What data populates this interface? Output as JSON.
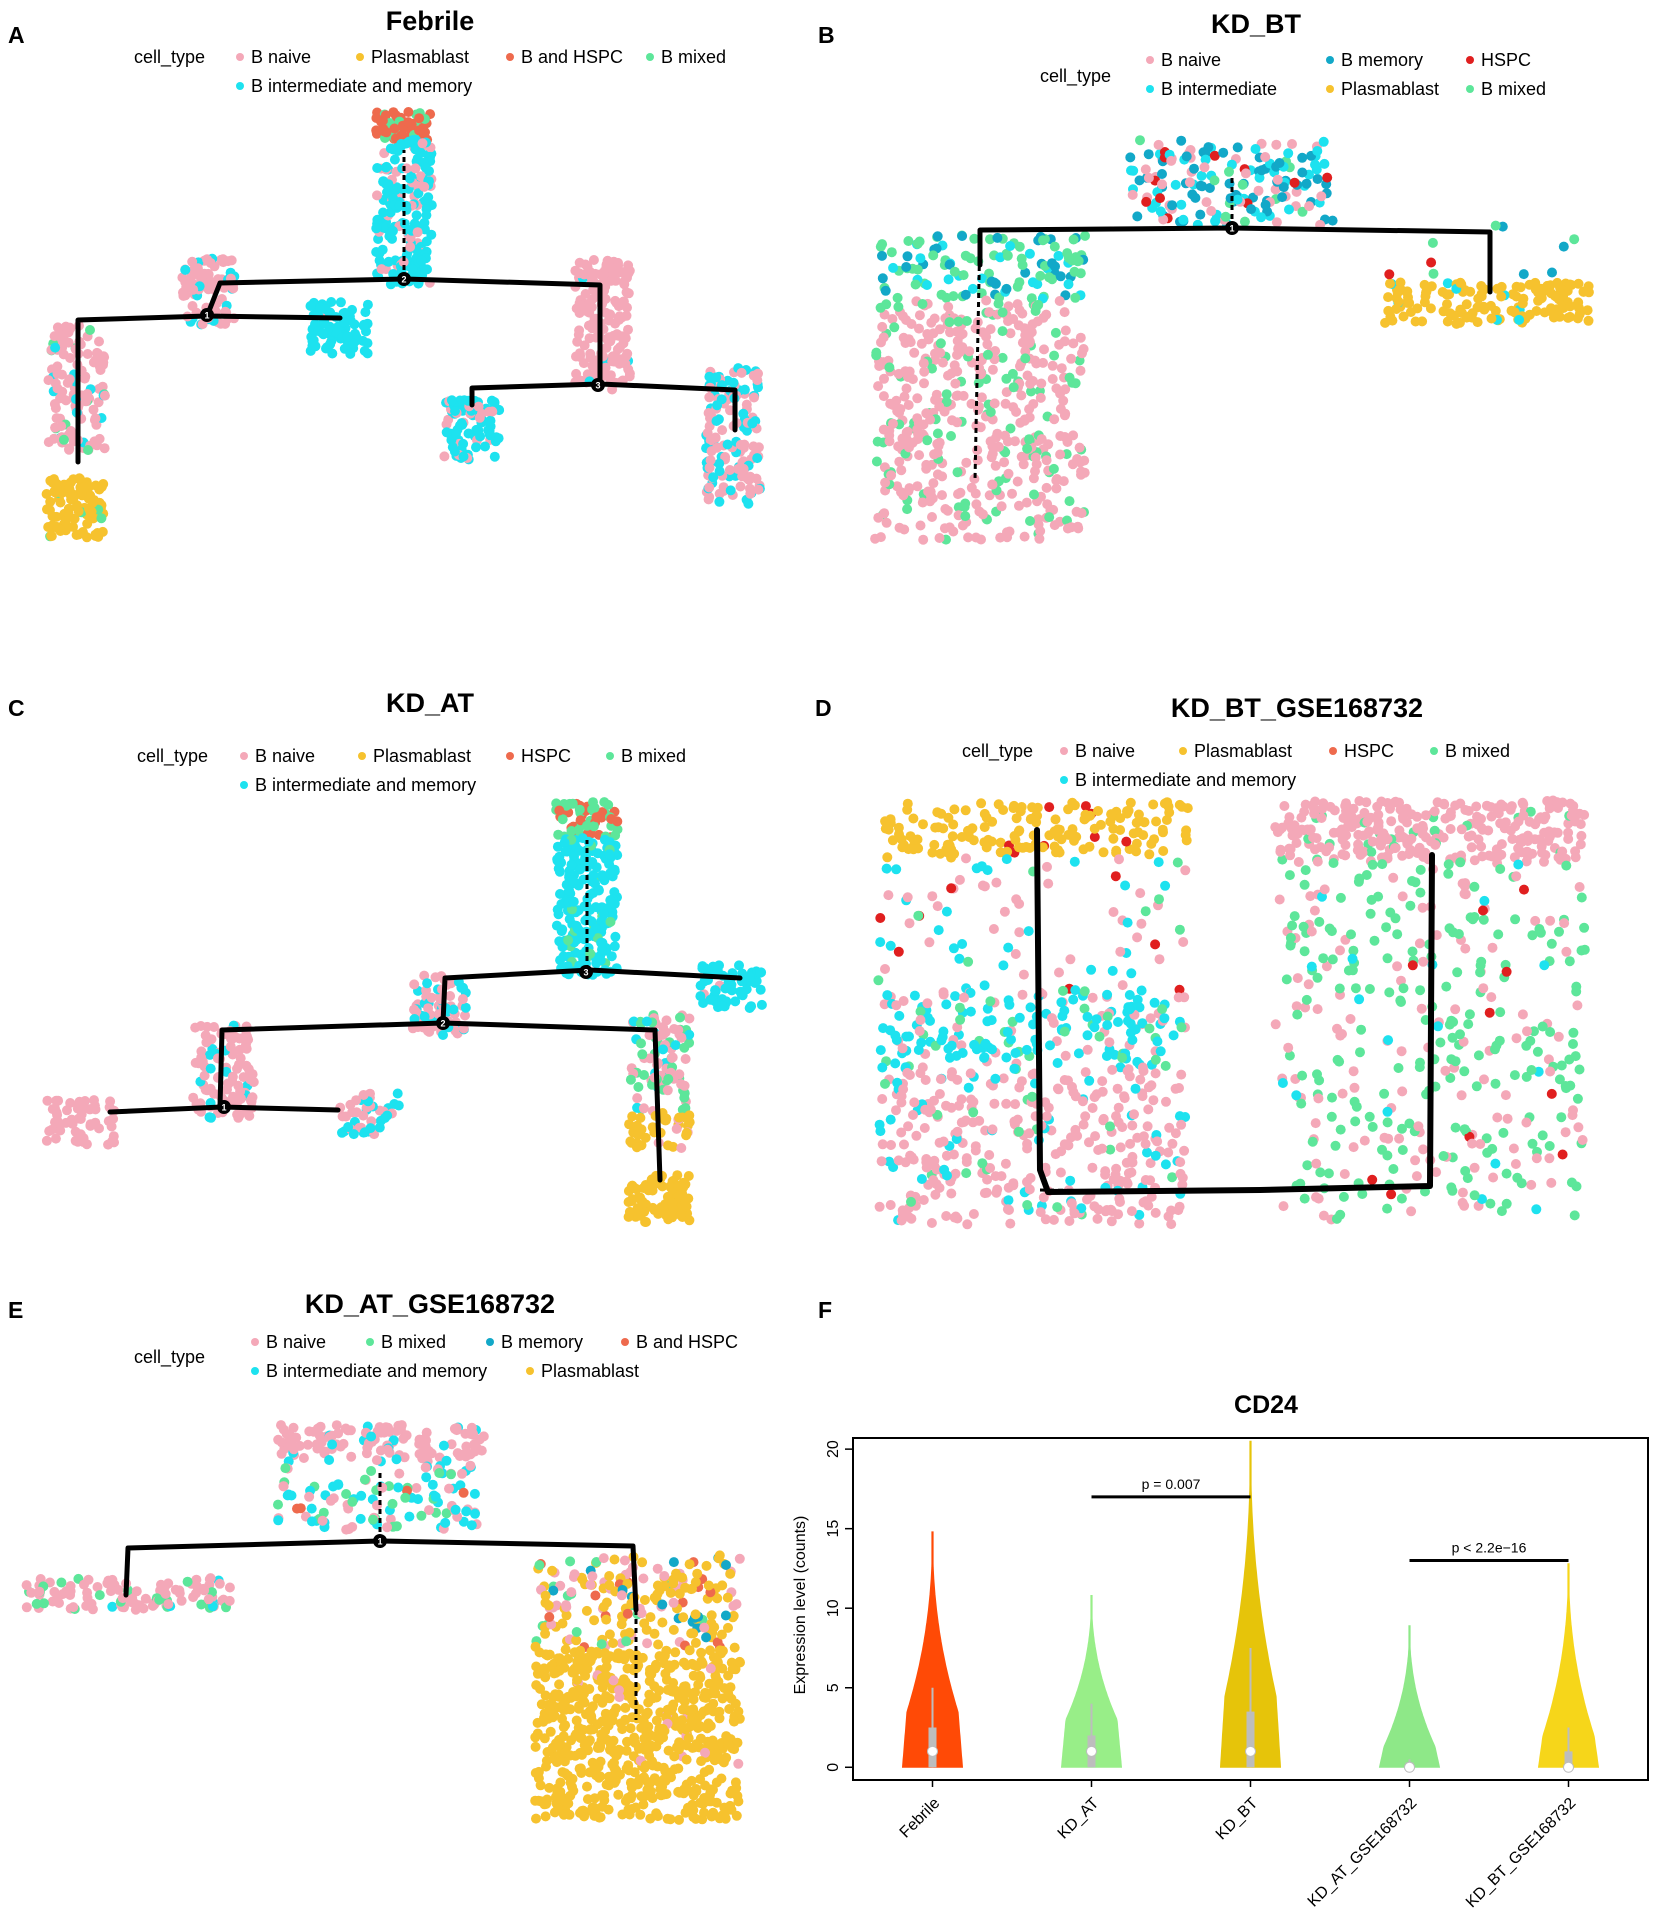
{
  "colors": {
    "b_naive": "#f4a8b8",
    "plasmablast": "#f6c22e",
    "hspc_red": "#e01f1f",
    "b_hspc_orange": "#ee6a4d",
    "b_mixed": "#5de69a",
    "b_inter": "#1de2ef",
    "b_memory": "#12a8c8",
    "violin_febrile": "#ff4a06",
    "violin_kdat": "#98ee88",
    "violin_kdbt": "#e6c40a",
    "violin_kdat_gse": "#8ee888",
    "violin_kdbt_gse": "#f6d61a",
    "branch": "#000000"
  },
  "panels": [
    {
      "letter": "A",
      "title": "Febrile",
      "legend_title": "cell_type",
      "legend": [
        {
          "label": "B naive",
          "color": "#f4a8b8"
        },
        {
          "label": "Plasmablast",
          "color": "#f6c22e"
        },
        {
          "label": "B and HSPC",
          "color": "#ee6a4d"
        },
        {
          "label": "B mixed",
          "color": "#5de69a"
        },
        {
          "label": "B intermediate and memory",
          "color": "#1de2ef"
        }
      ],
      "branch_nodes": [
        "1",
        "2",
        "3"
      ]
    },
    {
      "letter": "B",
      "title": "KD_BT",
      "legend_title": "cell_type",
      "legend": [
        {
          "label": "B naive",
          "color": "#f4a8b8"
        },
        {
          "label": "B memory",
          "color": "#12a8c8"
        },
        {
          "label": "HSPC",
          "color": "#e01f1f"
        },
        {
          "label": "B intermediate",
          "color": "#1de2ef"
        },
        {
          "label": "Plasmablast",
          "color": "#f6c22e"
        },
        {
          "label": "B mixed",
          "color": "#5de69a"
        }
      ],
      "branch_nodes": [
        "1"
      ]
    },
    {
      "letter": "C",
      "title": "KD_AT",
      "legend_title": "cell_type",
      "legend": [
        {
          "label": "B naive",
          "color": "#f4a8b8"
        },
        {
          "label": "Plasmablast",
          "color": "#f6c22e"
        },
        {
          "label": "HSPC",
          "color": "#ee6a4d"
        },
        {
          "label": "B mixed",
          "color": "#5de69a"
        },
        {
          "label": "B intermediate and memory",
          "color": "#1de2ef"
        }
      ],
      "branch_nodes": [
        "1",
        "2",
        "3"
      ]
    },
    {
      "letter": "D",
      "title": "KD_BT_GSE168732",
      "legend_title": "cell_type",
      "legend": [
        {
          "label": "B naive",
          "color": "#f4a8b8"
        },
        {
          "label": "Plasmablast",
          "color": "#f6c22e"
        },
        {
          "label": "HSPC",
          "color": "#ee6a4d"
        },
        {
          "label": "B mixed",
          "color": "#5de69a"
        },
        {
          "label": "B intermediate and memory",
          "color": "#1de2ef"
        }
      ],
      "branch_nodes": []
    },
    {
      "letter": "E",
      "title": "KD_AT_GSE168732",
      "legend_title": "cell_type",
      "legend": [
        {
          "label": "B naive",
          "color": "#f4a8b8"
        },
        {
          "label": "B mixed",
          "color": "#5de69a"
        },
        {
          "label": "B memory",
          "color": "#12a8c8"
        },
        {
          "label": "B and HSPC",
          "color": "#ee6a4d"
        },
        {
          "label": "B intermediate and memory",
          "color": "#1de2ef"
        },
        {
          "label": "Plasmablast",
          "color": "#f6c22e"
        }
      ],
      "branch_nodes": [
        "1"
      ]
    }
  ],
  "chart_data": [
    {
      "panel": "F",
      "type": "violin",
      "title": "CD24",
      "xlabel": "",
      "ylabel": "Expression level (counts)",
      "ylim": [
        -0.8,
        20.7
      ],
      "yticks": [
        0,
        5,
        10,
        15,
        20
      ],
      "categories": [
        "Febrile",
        "KD_AT",
        "KD_BT",
        "KD_AT_GSE168732",
        "KD_BT_GSE168732"
      ],
      "violins": [
        {
          "group": "Febrile",
          "max": 14.8,
          "median": 1.0,
          "q1": 0.0,
          "q3": 2.5,
          "whisker_top": 5.0,
          "color": "#ff4a06"
        },
        {
          "group": "KD_AT",
          "max": 10.8,
          "median": 1.0,
          "q1": 0.0,
          "q3": 2.0,
          "whisker_top": 4.0,
          "color": "#98ee88"
        },
        {
          "group": "KD_BT",
          "max": 20.5,
          "median": 1.0,
          "q1": 0.0,
          "q3": 3.5,
          "whisker_top": 7.5,
          "color": "#e6c40a"
        },
        {
          "group": "KD_AT_GSE168732",
          "max": 8.9,
          "median": 0.0,
          "q1": 0.0,
          "q3": 0.3,
          "whisker_top": 0.5,
          "color": "#8ee888"
        },
        {
          "group": "KD_BT_GSE168732",
          "max": 12.8,
          "median": 0.0,
          "q1": 0.0,
          "q3": 1.0,
          "whisker_top": 2.5,
          "color": "#f6d61a"
        }
      ],
      "comparisons": [
        {
          "groups": [
            "KD_AT",
            "KD_BT"
          ],
          "y": 17.0,
          "label": "p = 0.007"
        },
        {
          "groups": [
            "KD_AT_GSE168732",
            "KD_BT_GSE168732"
          ],
          "y": 13.0,
          "label": "p < 2.2e−16"
        }
      ]
    }
  ]
}
